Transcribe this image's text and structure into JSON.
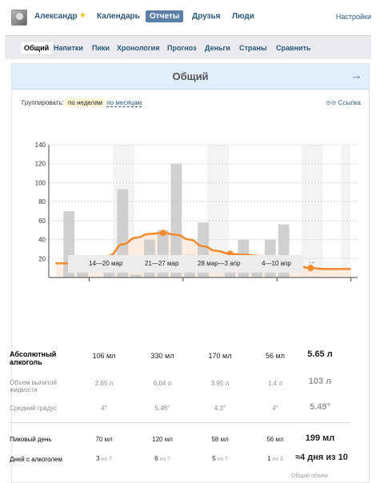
{
  "nav": {
    "user": "Александр",
    "items": [
      "Календарь",
      "Отчеты",
      "Друзья",
      "Люди"
    ],
    "active": "Отчеты",
    "settings": "Настройки"
  },
  "tabs": [
    "Общий",
    "Напитки",
    "Пики",
    "Хронология",
    "Прогноз",
    "Деньги",
    "Страны",
    "Сравнить"
  ],
  "section": {
    "title": "Общий",
    "arrow": "→"
  },
  "group": {
    "label": "Группировать:",
    "by_week": "по неделям",
    "by_month": "по месяцам"
  },
  "link_label": "Ссылка",
  "chart_data": {
    "type": "bar",
    "ylim": [
      0,
      140
    ],
    "yticks": [
      20,
      40,
      60,
      80,
      100,
      120,
      140
    ],
    "values": [
      0,
      70,
      15,
      0,
      20,
      93,
      3,
      40,
      50,
      120,
      24,
      58,
      0,
      22,
      40,
      10,
      40,
      56,
      0,
      0,
      0,
      0,
      0
    ],
    "trend": [
      15,
      15,
      15,
      17,
      23,
      35,
      42,
      46,
      47,
      45,
      40,
      33,
      28,
      25,
      24,
      23,
      20,
      16,
      12,
      10,
      9,
      9,
      9
    ],
    "trend_markers": [
      2,
      8,
      13,
      19
    ]
  },
  "weeks": {
    "prev": "←",
    "next": "→",
    "labels": [
      "14—20 мар",
      "21—27 мар",
      "28 мар—3 апр",
      "4—10 апр"
    ]
  },
  "stats": {
    "alcohol": {
      "label": "Абсолютный алкоголь",
      "values": [
        "106 мл",
        "330 мл",
        "170 мл",
        "56 мл"
      ],
      "total": "5.65 л"
    },
    "volume": {
      "label": "Объем выпитой жидкости",
      "values": [
        "2.65 л",
        "6.04 л",
        "3.95 л",
        "1.4 л"
      ],
      "total": "103 л"
    },
    "abv": {
      "label": "Средний градус",
      "values": [
        "4°",
        "5.46°",
        "4.3°",
        "4°"
      ],
      "total": "5.49°"
    },
    "peak": {
      "label": "Пиковый день",
      "values": [
        "70 мл",
        "120 мл",
        "58 мл",
        "56 мл"
      ],
      "total": "199 мл"
    },
    "days": {
      "label": "Дней с алкоголем",
      "values": [
        {
          "n": "3",
          "of": "из 7"
        },
        {
          "n": "6",
          "of": "из 7"
        },
        {
          "n": "5",
          "of": "из 7"
        },
        {
          "n": "1",
          "of": "из 3"
        }
      ],
      "total": "≈4 дня из 10"
    }
  },
  "footnote": "Общий объем"
}
